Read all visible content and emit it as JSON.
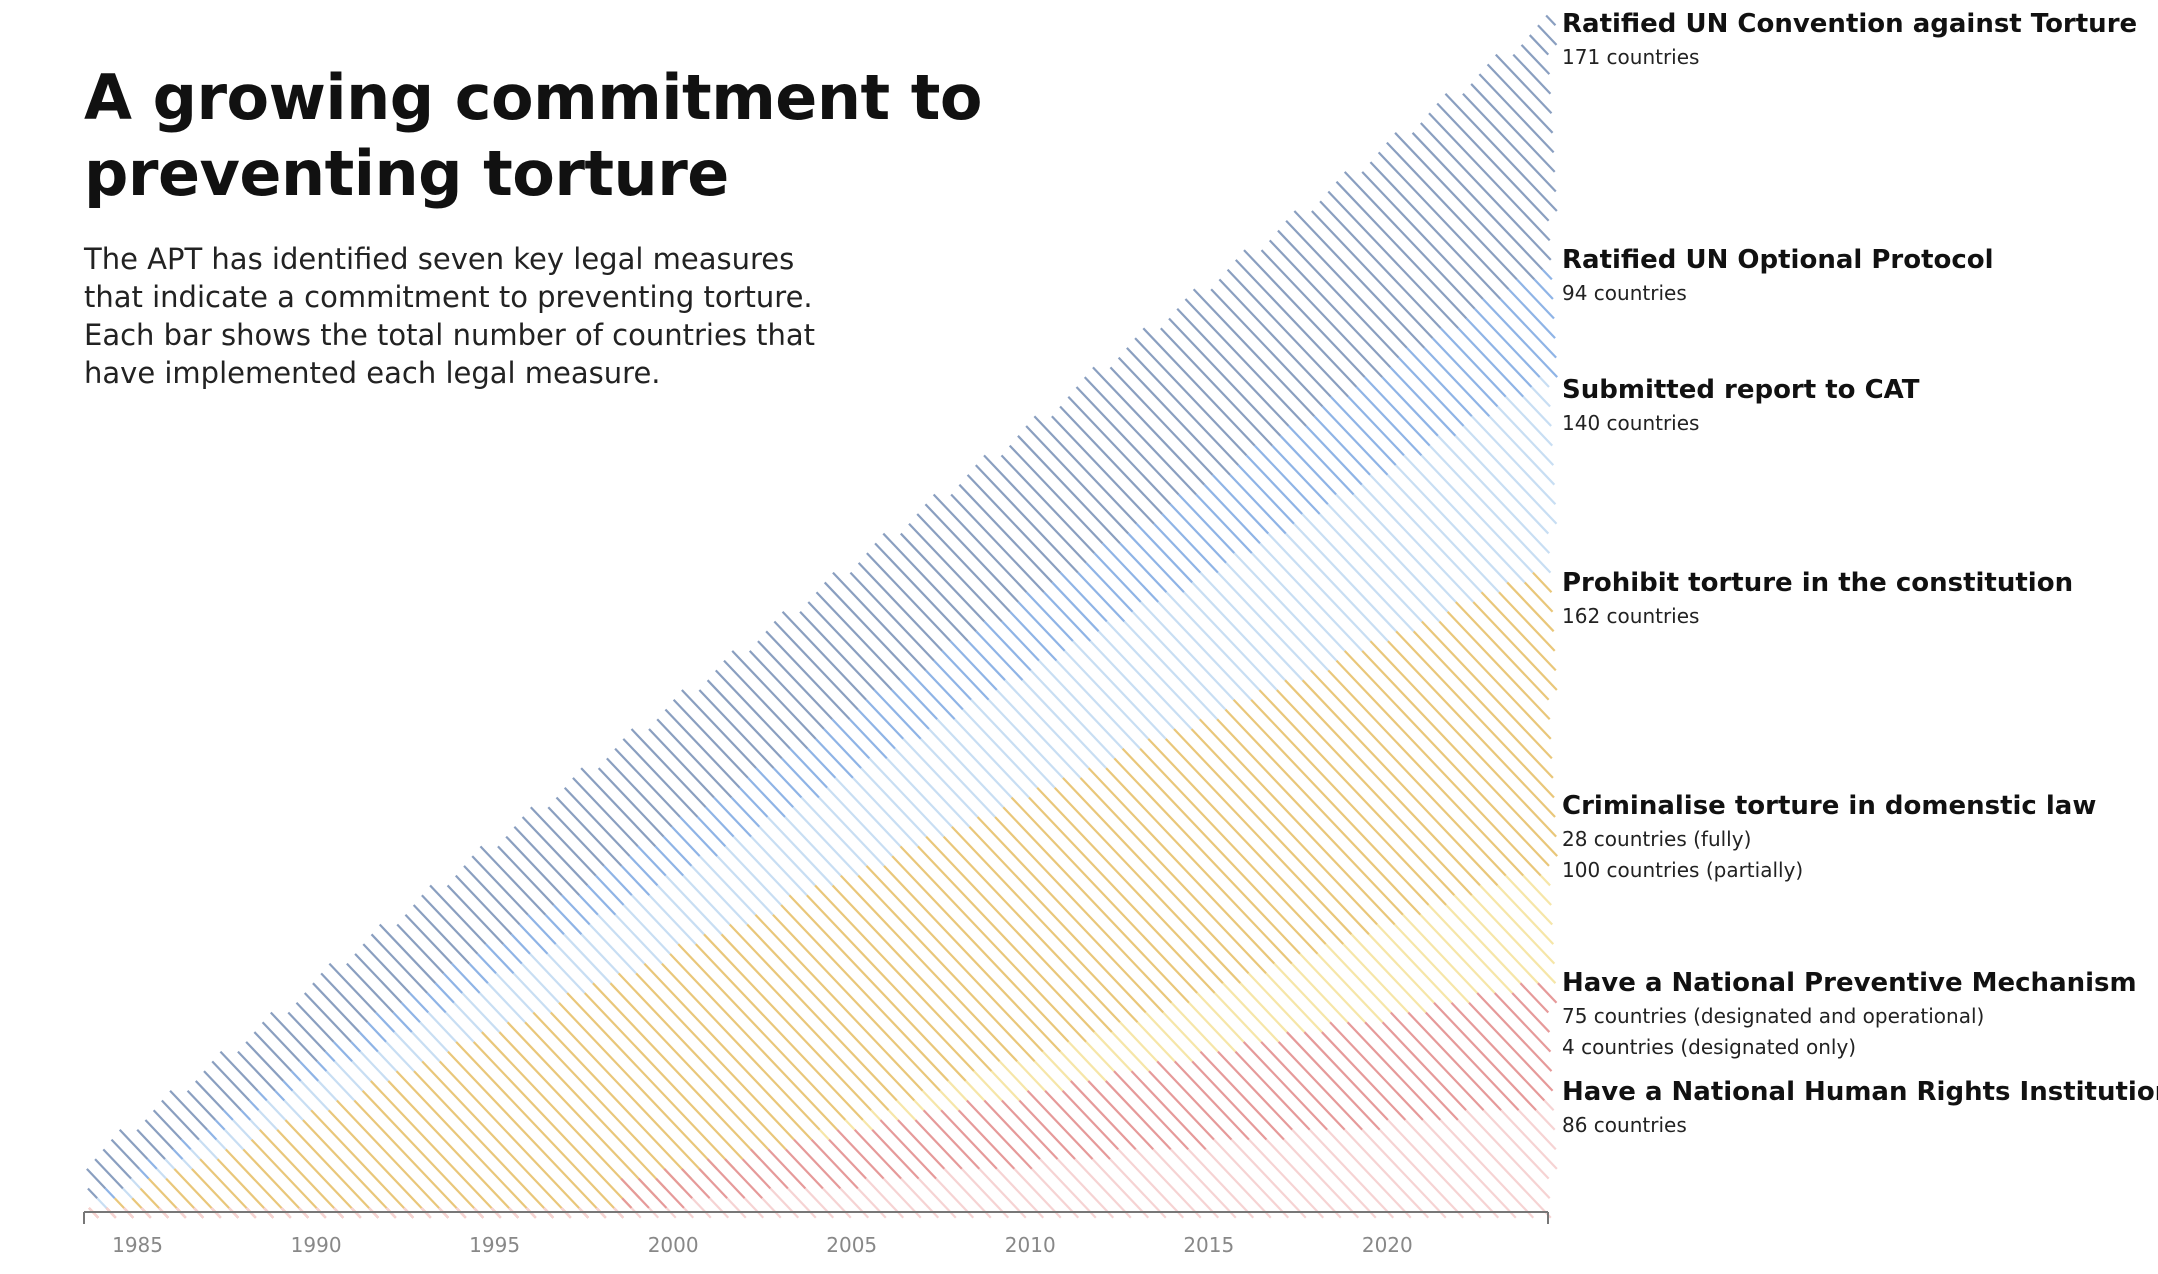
{
  "title": "A growing commitment to preventing torture",
  "subtitle": "The APT has identified seven key legal measures that indicate a commitment to preventing torture. Each bar shows the total number of countries that have implemented each legal measure.",
  "chart_data": {
    "type": "area",
    "title": "A growing commitment to preventing torture",
    "xlabel": "",
    "ylabel": "",
    "xlim": [
      1983.5,
      2024.5
    ],
    "x_ticks": [
      1985,
      1990,
      1995,
      2000,
      2005,
      2010,
      2015,
      2020
    ],
    "stacked": true,
    "style": "diagonal hatch lines, labels at right end",
    "measures": [
      {
        "name": "Ratified UN Convention against Torture",
        "detail": [
          "171 countries"
        ],
        "color": "#8a9fc0"
      },
      {
        "name": "Ratified UN Optional Protocol",
        "detail": [
          "94 countries"
        ],
        "color": "#8fb4e6"
      },
      {
        "name": "Submitted report to CAT",
        "detail": [
          "140 countries"
        ],
        "color": "#c8def3"
      },
      {
        "name": "Prohibit torture in the constitution",
        "detail": [
          "162 countries"
        ],
        "color": "#e9c77a"
      },
      {
        "name": "Criminalise torture in domenstic law",
        "detail": [
          "28 countries (fully)",
          "100 countries (partially)"
        ],
        "color": "#f6e6a8"
      },
      {
        "name": "Have a National Preventive Mechanism",
        "detail": [
          "75 countries (designated and operational)",
          "4 countries (designated only)"
        ],
        "color": "#e69a9a"
      },
      {
        "name": "Have a National Human Rights Institution",
        "detail": [
          "86 countries"
        ],
        "color": "#f6d3d3"
      }
    ]
  }
}
